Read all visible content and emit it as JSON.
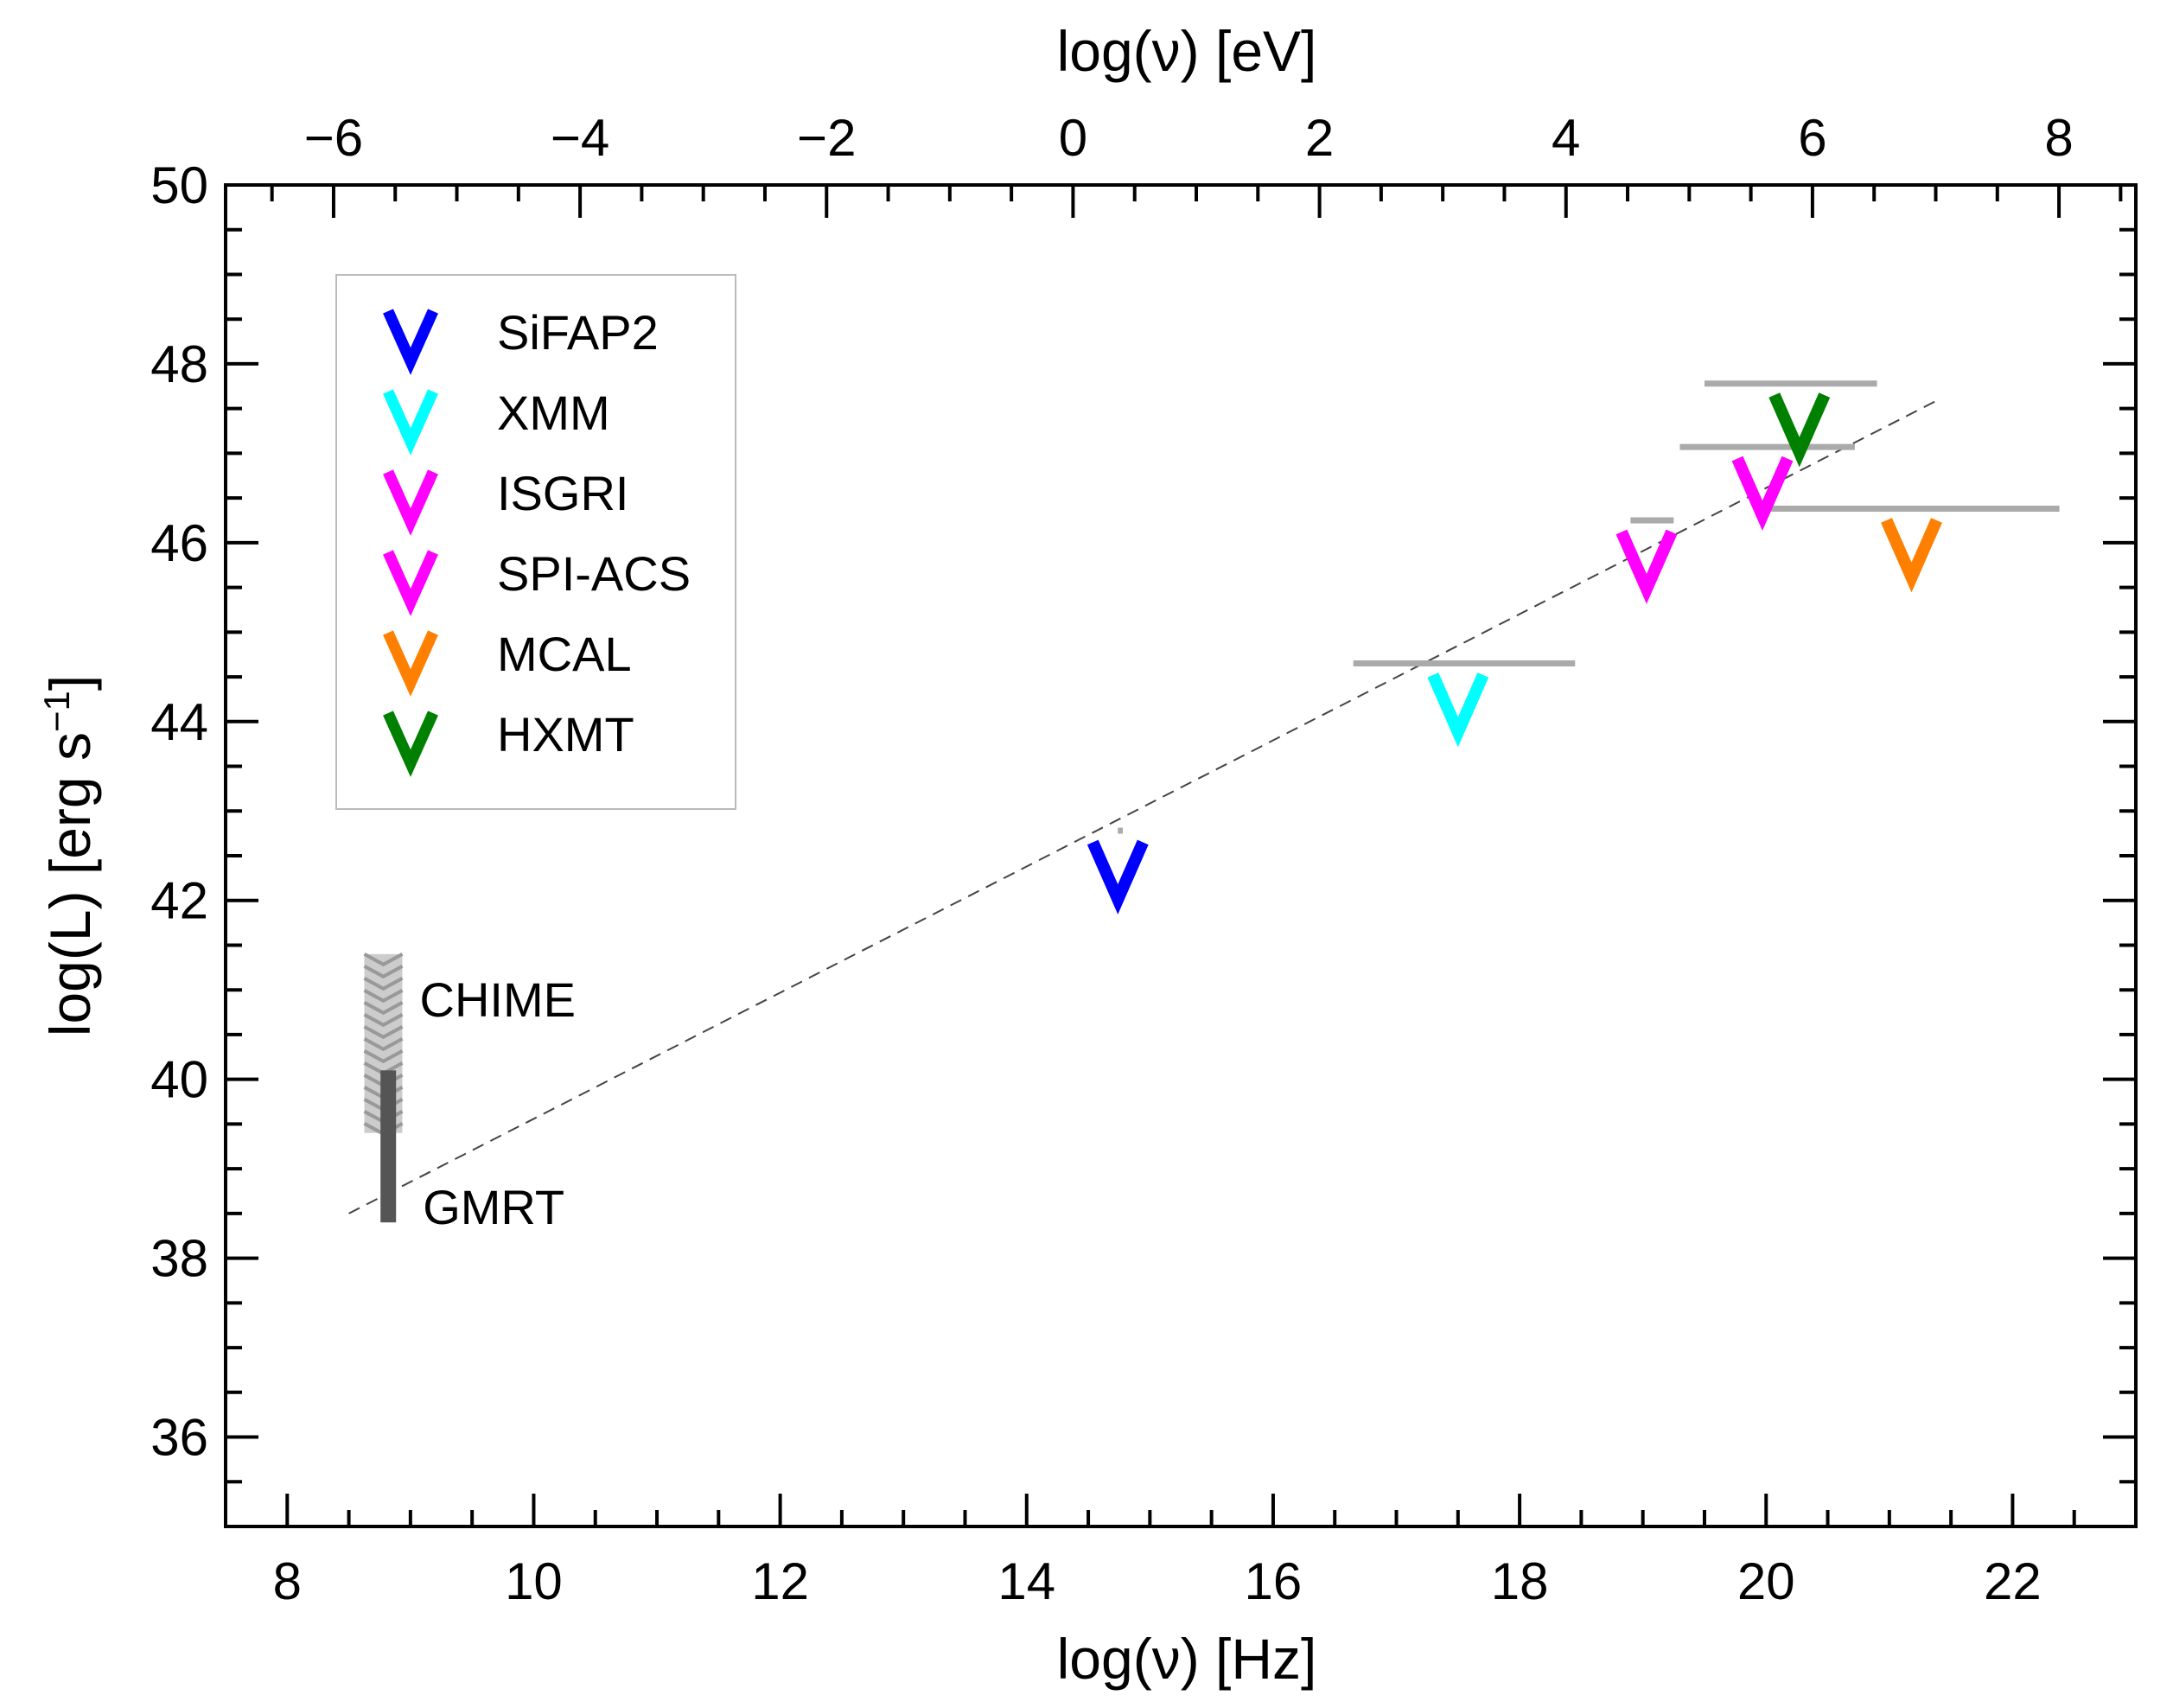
{
  "chart_data": {
    "type": "scatter",
    "xlabel": "log(ν) [Hz]",
    "ylabel_main": "log(L) [erg s",
    "ylabel_sup": "−1",
    "ylabel_close": "]",
    "top_xlabel": "log(ν) [eV]",
    "xlim": [
      7.5,
      23.0
    ],
    "ylim": [
      35.0,
      50.0
    ],
    "top_xlim": [
      -6.8763,
      8.6237
    ],
    "x_ticks": [
      8,
      10,
      12,
      14,
      16,
      18,
      20,
      22
    ],
    "x_tick_labels": [
      "8",
      "10",
      "12",
      "14",
      "16",
      "18",
      "20",
      "22"
    ],
    "y_ticks": [
      36,
      38,
      40,
      42,
      44,
      46,
      48,
      50
    ],
    "y_tick_labels": [
      "36",
      "38",
      "40",
      "42",
      "44",
      "46",
      "48",
      "50"
    ],
    "top_ticks": [
      -6,
      -4,
      -2,
      0,
      2,
      4,
      6,
      8
    ],
    "top_tick_labels": [
      "−6",
      "−4",
      "−2",
      "0",
      "2",
      "4",
      "6",
      "8"
    ],
    "legend_position": "top-left",
    "series": [
      {
        "name": "SiFAP2",
        "color": "#0000ff",
        "points": [
          {
            "x": 14.74,
            "y": 42.38,
            "band_lo": 14.74,
            "band_hi": 14.78,
            "band_y": 42.78
          }
        ]
      },
      {
        "name": "XMM",
        "color": "#00ffff",
        "points": [
          {
            "x": 17.5,
            "y": 44.25,
            "band_lo": 16.65,
            "band_hi": 18.45,
            "band_y": 44.65
          }
        ]
      },
      {
        "name": "ISGRI",
        "color": "#ff00ff",
        "points": [
          {
            "x": 19.97,
            "y": 46.67,
            "band_lo": 19.3,
            "band_hi": 20.72,
            "band_y": 47.07
          }
        ]
      },
      {
        "name": "SPI-ACS",
        "color": "#ff00ff",
        "points": [
          {
            "x": 19.03,
            "y": 45.85,
            "band_lo": 18.9,
            "band_hi": 19.25,
            "band_y": 46.25
          }
        ]
      },
      {
        "name": "MCAL",
        "color": "#ff8000",
        "points": [
          {
            "x": 21.18,
            "y": 45.98,
            "band_lo": 20.0,
            "band_hi": 22.38,
            "band_y": 46.38
          }
        ]
      },
      {
        "name": "HXMT",
        "color": "#008000",
        "points": [
          {
            "x": 20.27,
            "y": 47.38,
            "band_lo": 19.5,
            "band_hi": 20.9,
            "band_y": 47.78
          }
        ]
      }
    ],
    "radio": [
      {
        "name": "CHIME",
        "color": "#aaaaaa",
        "x": 8.78,
        "ylow": 39.4,
        "yhigh": 41.4
      },
      {
        "name": "GMRT",
        "color": "#555555",
        "x": 8.82,
        "ylow": 38.4,
        "yhigh": 40.1
      }
    ],
    "fit_line": {
      "style": "dashed",
      "color": "#444444",
      "x": [
        8.5,
        21.4
      ],
      "y": [
        38.5,
        47.6
      ]
    }
  }
}
